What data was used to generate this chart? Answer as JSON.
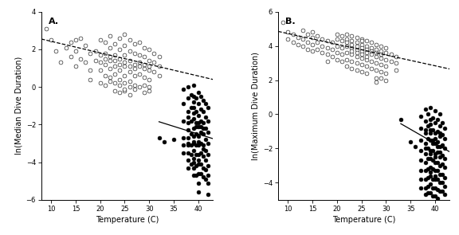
{
  "panel_A": {
    "label": "A.",
    "ylabel": "ln(Median Dive Duration)",
    "xlabel": "Temperature (C)",
    "ylim": [
      -6,
      4
    ],
    "xlim": [
      8,
      43
    ],
    "yticks": [
      -6,
      -4,
      -2,
      0,
      2,
      4
    ],
    "xticks": [
      10,
      15,
      20,
      25,
      30,
      35,
      40
    ],
    "open_points": [
      [
        9,
        3.1
      ],
      [
        10,
        2.5
      ],
      [
        11,
        1.9
      ],
      [
        12,
        1.3
      ],
      [
        13,
        2.1
      ],
      [
        14,
        1.6
      ],
      [
        14,
        2.4
      ],
      [
        15,
        1.9
      ],
      [
        15,
        2.5
      ],
      [
        15,
        1.1
      ],
      [
        16,
        2.6
      ],
      [
        16,
        1.5
      ],
      [
        17,
        1.3
      ],
      [
        17,
        2.2
      ],
      [
        18,
        1.8
      ],
      [
        18,
        0.9
      ],
      [
        18,
        0.4
      ],
      [
        19,
        1.4
      ],
      [
        19,
        1.9
      ],
      [
        20,
        2.5
      ],
      [
        20,
        1.7
      ],
      [
        20,
        0.9
      ],
      [
        20,
        0.2
      ],
      [
        20,
        1.3
      ],
      [
        21,
        2.4
      ],
      [
        21,
        1.8
      ],
      [
        21,
        1.2
      ],
      [
        21,
        0.6
      ],
      [
        21,
        1.5
      ],
      [
        21,
        0.1
      ],
      [
        22,
        2.7
      ],
      [
        22,
        2.1
      ],
      [
        22,
        1.6
      ],
      [
        22,
        1.0
      ],
      [
        22,
        0.5
      ],
      [
        22,
        1.4
      ],
      [
        22,
        0.3
      ],
      [
        23,
        2.3
      ],
      [
        23,
        1.7
      ],
      [
        23,
        1.1
      ],
      [
        23,
        0.7
      ],
      [
        23,
        1.4
      ],
      [
        23,
        0.2
      ],
      [
        23,
        -0.2
      ],
      [
        24,
        2.6
      ],
      [
        24,
        2.0
      ],
      [
        24,
        1.5
      ],
      [
        24,
        0.9
      ],
      [
        24,
        0.4
      ],
      [
        24,
        1.2
      ],
      [
        24,
        0.1
      ],
      [
        24,
        -0.3
      ],
      [
        25,
        2.8
      ],
      [
        25,
        2.2
      ],
      [
        25,
        1.7
      ],
      [
        25,
        1.1
      ],
      [
        25,
        0.6
      ],
      [
        25,
        1.3
      ],
      [
        25,
        0.2
      ],
      [
        25,
        -0.2
      ],
      [
        25,
        -0.1
      ],
      [
        26,
        2.5
      ],
      [
        26,
        1.9
      ],
      [
        26,
        1.4
      ],
      [
        26,
        0.8
      ],
      [
        26,
        0.3
      ],
      [
        26,
        1.1
      ],
      [
        26,
        0.0
      ],
      [
        26,
        -0.4
      ],
      [
        27,
        2.3
      ],
      [
        27,
        1.8
      ],
      [
        27,
        1.2
      ],
      [
        27,
        0.6
      ],
      [
        27,
        0.1
      ],
      [
        27,
        1.0
      ],
      [
        27,
        -0.1
      ],
      [
        28,
        2.4
      ],
      [
        28,
        1.7
      ],
      [
        28,
        1.3
      ],
      [
        28,
        0.7
      ],
      [
        28,
        1.1
      ],
      [
        28,
        0.0
      ],
      [
        29,
        2.1
      ],
      [
        29,
        1.6
      ],
      [
        29,
        1.0
      ],
      [
        29,
        0.5
      ],
      [
        29,
        1.2
      ],
      [
        29,
        0.1
      ],
      [
        29,
        -0.3
      ],
      [
        30,
        2.0
      ],
      [
        30,
        1.4
      ],
      [
        30,
        0.9
      ],
      [
        30,
        0.4
      ],
      [
        30,
        1.1
      ],
      [
        30,
        0.0
      ],
      [
        30,
        -0.2
      ],
      [
        31,
        1.8
      ],
      [
        31,
        1.3
      ],
      [
        31,
        0.8
      ],
      [
        32,
        1.6
      ],
      [
        32,
        1.1
      ],
      [
        32,
        0.6
      ]
    ],
    "closed_points": [
      [
        32,
        -2.7
      ],
      [
        33,
        -2.9
      ],
      [
        35,
        -2.8
      ],
      [
        37,
        -0.1
      ],
      [
        37,
        -0.9
      ],
      [
        37,
        -1.8
      ],
      [
        37,
        -2.7
      ],
      [
        37,
        -3.1
      ],
      [
        37,
        -3.5
      ],
      [
        38,
        0.0
      ],
      [
        38,
        -0.6
      ],
      [
        38,
        -1.3
      ],
      [
        38,
        -1.9
      ],
      [
        38,
        -2.3
      ],
      [
        38,
        -2.7
      ],
      [
        38,
        -3.1
      ],
      [
        38,
        -3.5
      ],
      [
        38,
        -3.9
      ],
      [
        38,
        -4.3
      ],
      [
        38,
        -1.6
      ],
      [
        38,
        -3.0
      ],
      [
        38.5,
        -0.4
      ],
      [
        38.5,
        -1.1
      ],
      [
        38.5,
        -1.8
      ],
      [
        38.5,
        -2.5
      ],
      [
        38.5,
        -3.1
      ],
      [
        38.5,
        -3.6
      ],
      [
        38.5,
        -4.1
      ],
      [
        39,
        0.1
      ],
      [
        39,
        -0.5
      ],
      [
        39,
        -1.1
      ],
      [
        39,
        -1.7
      ],
      [
        39,
        -2.2
      ],
      [
        39,
        -2.6
      ],
      [
        39,
        -3.0
      ],
      [
        39,
        -3.4
      ],
      [
        39,
        -3.8
      ],
      [
        39,
        -4.3
      ],
      [
        39,
        -4.7
      ],
      [
        39,
        -1.4
      ],
      [
        39,
        -2.9
      ],
      [
        39,
        -4.0
      ],
      [
        39,
        -0.8
      ],
      [
        39.5,
        -0.6
      ],
      [
        39.5,
        -1.3
      ],
      [
        39.5,
        -1.9
      ],
      [
        39.5,
        -2.5
      ],
      [
        39.5,
        -3.1
      ],
      [
        39.5,
        -3.6
      ],
      [
        39.5,
        -4.2
      ],
      [
        39.5,
        -4.7
      ],
      [
        39.5,
        -2.1
      ],
      [
        40,
        -0.3
      ],
      [
        40,
        -0.9
      ],
      [
        40,
        -1.5
      ],
      [
        40,
        -2.1
      ],
      [
        40,
        -2.6
      ],
      [
        40,
        -3.1
      ],
      [
        40,
        -3.6
      ],
      [
        40,
        -4.1
      ],
      [
        40,
        -4.6
      ],
      [
        40,
        -5.1
      ],
      [
        40,
        -5.6
      ],
      [
        40,
        -1.9
      ],
      [
        40,
        -2.9
      ],
      [
        40,
        -3.9
      ],
      [
        40.5,
        -0.5
      ],
      [
        40.5,
        -1.2
      ],
      [
        40.5,
        -1.8
      ],
      [
        40.5,
        -2.4
      ],
      [
        40.5,
        -3.0
      ],
      [
        40.5,
        -3.5
      ],
      [
        40.5,
        -4.1
      ],
      [
        40.5,
        -4.6
      ],
      [
        40.5,
        -2.1
      ],
      [
        41,
        -0.7
      ],
      [
        41,
        -1.3
      ],
      [
        41,
        -1.9
      ],
      [
        41,
        -2.5
      ],
      [
        41,
        -3.1
      ],
      [
        41,
        -3.7
      ],
      [
        41,
        -4.3
      ],
      [
        41,
        -4.8
      ],
      [
        41,
        -2.2
      ],
      [
        41,
        -3.3
      ],
      [
        41.5,
        -0.9
      ],
      [
        41.5,
        -1.6
      ],
      [
        41.5,
        -2.2
      ],
      [
        41.5,
        -2.8
      ],
      [
        41.5,
        -3.4
      ],
      [
        41.5,
        -3.9
      ],
      [
        41.5,
        -4.4
      ],
      [
        41.5,
        -4.9
      ],
      [
        42,
        -1.1
      ],
      [
        42,
        -1.8
      ],
      [
        42,
        -2.4
      ],
      [
        42,
        -3.0
      ],
      [
        42,
        -3.6
      ],
      [
        42,
        -4.2
      ],
      [
        42,
        -4.7
      ],
      [
        42,
        -5.1
      ],
      [
        42,
        -5.7
      ]
    ],
    "open_line": {
      "x0": 8,
      "y0": 2.55,
      "x1": 43,
      "y1": 0.4
    },
    "closed_line": {
      "x0": 32,
      "y0": -1.85,
      "x1": 43,
      "y1": -2.75
    }
  },
  "panel_B": {
    "label": "B.",
    "ylabel": "ln(Maximum Dive Duration)",
    "xlabel": "Temperature (C)",
    "ylim": [
      -5,
      6
    ],
    "xlim": [
      8,
      43
    ],
    "yticks": [
      -4,
      -2,
      0,
      2,
      4,
      6
    ],
    "xticks": [
      10,
      15,
      20,
      25,
      30,
      35,
      40
    ],
    "open_points": [
      [
        9,
        5.4
      ],
      [
        10,
        4.8
      ],
      [
        10,
        4.4
      ],
      [
        11,
        4.7
      ],
      [
        11,
        4.2
      ],
      [
        12,
        4.5
      ],
      [
        12,
        4.1
      ],
      [
        13,
        4.9
      ],
      [
        13,
        4.4
      ],
      [
        13,
        4.0
      ],
      [
        14,
        4.7
      ],
      [
        14,
        4.2
      ],
      [
        14,
        3.8
      ],
      [
        15,
        4.5
      ],
      [
        15,
        4.1
      ],
      [
        15,
        3.7
      ],
      [
        15,
        4.8
      ],
      [
        16,
        4.6
      ],
      [
        16,
        4.2
      ],
      [
        16,
        3.8
      ],
      [
        17,
        4.4
      ],
      [
        17,
        4.0
      ],
      [
        17,
        3.6
      ],
      [
        18,
        4.3
      ],
      [
        18,
        3.9
      ],
      [
        18,
        3.5
      ],
      [
        18,
        3.1
      ],
      [
        19,
        4.2
      ],
      [
        19,
        3.8
      ],
      [
        19,
        3.4
      ],
      [
        20,
        4.4
      ],
      [
        20,
        4.0
      ],
      [
        20,
        3.6
      ],
      [
        20,
        3.2
      ],
      [
        20,
        4.7
      ],
      [
        21,
        4.3
      ],
      [
        21,
        3.9
      ],
      [
        21,
        3.5
      ],
      [
        21,
        3.1
      ],
      [
        21,
        4.6
      ],
      [
        22,
        4.4
      ],
      [
        22,
        4.0
      ],
      [
        22,
        3.6
      ],
      [
        22,
        3.2
      ],
      [
        22,
        2.8
      ],
      [
        22,
        4.7
      ],
      [
        22,
        4.2
      ],
      [
        23,
        4.3
      ],
      [
        23,
        3.9
      ],
      [
        23,
        3.5
      ],
      [
        23,
        3.1
      ],
      [
        23,
        2.7
      ],
      [
        23,
        4.6
      ],
      [
        23,
        4.1
      ],
      [
        23,
        3.7
      ],
      [
        24,
        4.2
      ],
      [
        24,
        3.8
      ],
      [
        24,
        3.4
      ],
      [
        24,
        3.0
      ],
      [
        24,
        2.6
      ],
      [
        24,
        4.5
      ],
      [
        24,
        4.0
      ],
      [
        24,
        3.6
      ],
      [
        25,
        4.1
      ],
      [
        25,
        3.7
      ],
      [
        25,
        3.3
      ],
      [
        25,
        2.9
      ],
      [
        25,
        2.5
      ],
      [
        25,
        4.4
      ],
      [
        25,
        3.9
      ],
      [
        25,
        3.5
      ],
      [
        25,
        4.3
      ],
      [
        26,
        4.0
      ],
      [
        26,
        3.6
      ],
      [
        26,
        3.2
      ],
      [
        26,
        2.8
      ],
      [
        26,
        2.4
      ],
      [
        26,
        4.3
      ],
      [
        26,
        3.8
      ],
      [
        26,
        3.4
      ],
      [
        27,
        3.9
      ],
      [
        27,
        3.5
      ],
      [
        27,
        3.1
      ],
      [
        27,
        2.7
      ],
      [
        27,
        4.2
      ],
      [
        27,
        3.7
      ],
      [
        28,
        3.8
      ],
      [
        28,
        3.4
      ],
      [
        28,
        3.0
      ],
      [
        28,
        2.6
      ],
      [
        28,
        2.1
      ],
      [
        28,
        4.1
      ],
      [
        28,
        3.6
      ],
      [
        28,
        1.9
      ],
      [
        29,
        3.7
      ],
      [
        29,
        3.3
      ],
      [
        29,
        2.9
      ],
      [
        29,
        2.5
      ],
      [
        29,
        2.1
      ],
      [
        29,
        4.0
      ],
      [
        29,
        3.5
      ],
      [
        30,
        3.6
      ],
      [
        30,
        3.2
      ],
      [
        30,
        2.8
      ],
      [
        30,
        2.4
      ],
      [
        30,
        2.0
      ],
      [
        30,
        3.9
      ],
      [
        31,
        3.5
      ],
      [
        31,
        3.1
      ],
      [
        32,
        3.4
      ],
      [
        32,
        3.0
      ],
      [
        32,
        2.6
      ]
    ],
    "closed_points": [
      [
        33,
        -0.3
      ],
      [
        35,
        -1.6
      ],
      [
        36,
        -1.9
      ],
      [
        37,
        -0.1
      ],
      [
        37,
        -0.8
      ],
      [
        37,
        -1.5
      ],
      [
        37,
        -2.1
      ],
      [
        37,
        -2.7
      ],
      [
        37,
        -3.3
      ],
      [
        37,
        -3.8
      ],
      [
        37,
        -4.3
      ],
      [
        38,
        0.3
      ],
      [
        38,
        -0.4
      ],
      [
        38,
        -1.1
      ],
      [
        38,
        -1.7
      ],
      [
        38,
        -2.3
      ],
      [
        38,
        -2.8
      ],
      [
        38,
        -3.3
      ],
      [
        38,
        -3.8
      ],
      [
        38,
        -4.3
      ],
      [
        38,
        -4.7
      ],
      [
        38,
        -0.9
      ],
      [
        38,
        -2.0
      ],
      [
        38.5,
        0.0
      ],
      [
        38.5,
        -0.7
      ],
      [
        38.5,
        -1.4
      ],
      [
        38.5,
        -2.0
      ],
      [
        38.5,
        -2.6
      ],
      [
        38.5,
        -3.2
      ],
      [
        38.5,
        -3.7
      ],
      [
        38.5,
        -4.2
      ],
      [
        38.5,
        -4.6
      ],
      [
        39,
        0.4
      ],
      [
        39,
        -0.3
      ],
      [
        39,
        -0.9
      ],
      [
        39,
        -1.5
      ],
      [
        39,
        -2.1
      ],
      [
        39,
        -2.6
      ],
      [
        39,
        -3.1
      ],
      [
        39,
        -3.6
      ],
      [
        39,
        -4.1
      ],
      [
        39,
        -4.6
      ],
      [
        39,
        -1.1
      ],
      [
        39,
        -2.3
      ],
      [
        39,
        -3.4
      ],
      [
        39,
        -0.6
      ],
      [
        39.5,
        -0.2
      ],
      [
        39.5,
        -0.9
      ],
      [
        39.5,
        -1.5
      ],
      [
        39.5,
        -2.1
      ],
      [
        39.5,
        -2.7
      ],
      [
        39.5,
        -3.2
      ],
      [
        39.5,
        -3.8
      ],
      [
        39.5,
        -4.3
      ],
      [
        39.5,
        -4.8
      ],
      [
        39.5,
        -1.7
      ],
      [
        40,
        0.2
      ],
      [
        40,
        -0.5
      ],
      [
        40,
        -1.1
      ],
      [
        40,
        -1.7
      ],
      [
        40,
        -2.3
      ],
      [
        40,
        -2.8
      ],
      [
        40,
        -3.3
      ],
      [
        40,
        -3.8
      ],
      [
        40,
        -4.3
      ],
      [
        40,
        -4.8
      ],
      [
        40,
        -1.4
      ],
      [
        40,
        -2.5
      ],
      [
        40,
        -3.6
      ],
      [
        40.5,
        -0.3
      ],
      [
        40.5,
        -1.0
      ],
      [
        40.5,
        -1.6
      ],
      [
        40.5,
        -2.2
      ],
      [
        40.5,
        -2.8
      ],
      [
        40.5,
        -3.3
      ],
      [
        40.5,
        -3.8
      ],
      [
        40.5,
        -4.4
      ],
      [
        40.5,
        -4.9
      ],
      [
        40.5,
        -1.9
      ],
      [
        41,
        0.0
      ],
      [
        41,
        -0.7
      ],
      [
        41,
        -1.3
      ],
      [
        41,
        -1.9
      ],
      [
        41,
        -2.5
      ],
      [
        41,
        -3.0
      ],
      [
        41,
        -3.5
      ],
      [
        41,
        -4.0
      ],
      [
        41,
        -4.5
      ],
      [
        41,
        -1.1
      ],
      [
        41,
        -2.2
      ],
      [
        41.5,
        -0.5
      ],
      [
        41.5,
        -1.2
      ],
      [
        41.5,
        -1.8
      ],
      [
        41.5,
        -2.4
      ],
      [
        41.5,
        -2.9
      ],
      [
        41.5,
        -3.5
      ],
      [
        41.5,
        -4.0
      ],
      [
        41.5,
        -4.5
      ],
      [
        42,
        -0.8
      ],
      [
        42,
        -1.4
      ],
      [
        42,
        -2.0
      ],
      [
        42,
        -2.6
      ],
      [
        42,
        -3.1
      ],
      [
        42,
        -3.7
      ],
      [
        42,
        -4.2
      ],
      [
        42,
        -4.7
      ]
    ],
    "open_line": {
      "x0": 8,
      "y0": 4.85,
      "x1": 43,
      "y1": 2.65
    },
    "closed_line": {
      "x0": 33,
      "y0": -0.55,
      "x1": 43,
      "y1": -2.2
    }
  },
  "open_color": "white",
  "closed_color": "black",
  "edge_color": "black",
  "marker_size": 3.5,
  "line_color_open": "black",
  "line_color_closed": "black",
  "open_linestyle": "--",
  "closed_linestyle": "-",
  "bg_color": "white",
  "font_size_label": 7,
  "font_size_axis": 6,
  "font_size_panel": 8
}
